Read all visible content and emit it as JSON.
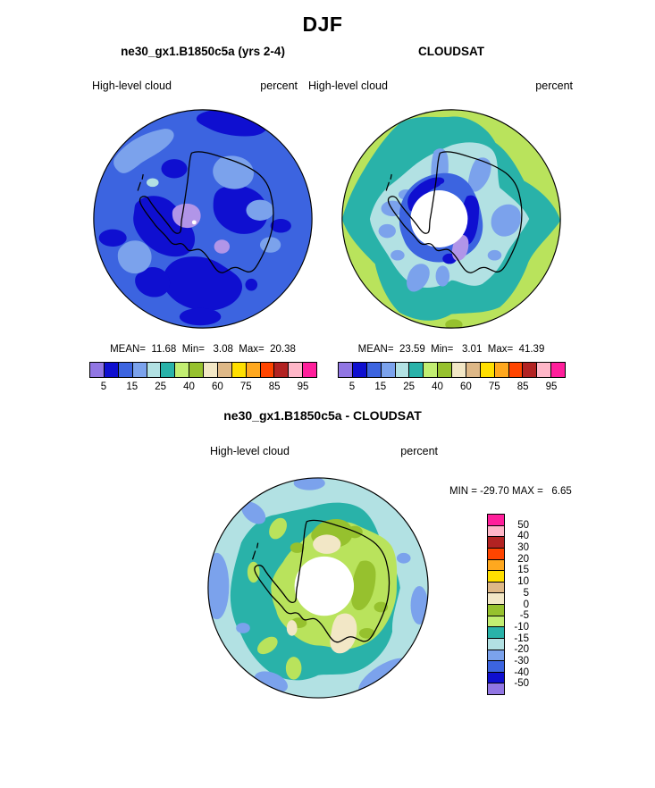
{
  "figure_title": "DJF",
  "palette": {
    "top": [
      "#9176e3",
      "#0f0fd0",
      "#3c64e0",
      "#7ba2ec",
      "#b2e1e3",
      "#29b2a9",
      "#c2ee72",
      "#96c12e",
      "#f2e7c6",
      "#deb887",
      "#ffdf00",
      "#ffa81f",
      "#ff4500",
      "#b22222",
      "#ffb6c8",
      "#ff1f9b"
    ],
    "diff": [
      "#ff1f9b",
      "#ffb6c8",
      "#b22222",
      "#ff4500",
      "#ffa81f",
      "#ffdf00",
      "#deb887",
      "#f2e7c6",
      "#96c12e",
      "#c2ee72",
      "#29b2a9",
      "#b2e1e3",
      "#7ba2ec",
      "#3c64e0",
      "#0f0fd0",
      "#9176e3"
    ]
  },
  "panels": {
    "model": {
      "title": "ne30_gx1.B1850c5a (yrs 2-4)",
      "variable": "High-level cloud",
      "units": "percent",
      "stats": "MEAN=  11.68  Min=   3.08  Max=  20.38",
      "ticks": [
        "5",
        "15",
        "25",
        "40",
        "60",
        "75",
        "85",
        "95"
      ]
    },
    "obs": {
      "title": "CLOUDSAT",
      "variable": "High-level cloud",
      "units": "percent",
      "stats": "MEAN=  23.59  Min=   3.01  Max=  41.39",
      "ticks": [
        "5",
        "15",
        "25",
        "40",
        "60",
        "75",
        "85",
        "95"
      ]
    },
    "diff": {
      "title": "ne30_gx1.B1850c5a - CLOUDSAT",
      "variable": "High-level cloud",
      "units": "percent",
      "stats": "MIN = -29.70 MAX =   6.65",
      "ticks": [
        "50",
        "40",
        "30",
        "20",
        "15",
        "10",
        "5",
        "0",
        "-5",
        "-10",
        "-15",
        "-20",
        "-30",
        "-40",
        "-50"
      ]
    }
  },
  "chart_data": [
    {
      "type": "heatmap",
      "subtype": "filled-contour-polar-map",
      "projection": "south polar stereographic (Antarctica)",
      "season": "DJF",
      "title": "ne30_gx1.B1850c5a (yrs 2-4)",
      "variable": "High-level cloud",
      "units": "percent",
      "stats": {
        "mean": 11.68,
        "min": 3.08,
        "max": 20.38
      },
      "colorbar": {
        "orientation": "horizontal",
        "labeled_ticks": [
          5,
          15,
          25,
          40,
          60,
          75,
          85,
          95
        ],
        "n_colors": 16,
        "colors": [
          "#9176e3",
          "#0f0fd0",
          "#3c64e0",
          "#7ba2ec",
          "#b2e1e3",
          "#29b2a9",
          "#c2ee72",
          "#96c12e",
          "#f2e7c6",
          "#deb887",
          "#ffdf00",
          "#ffa81f",
          "#ff4500",
          "#b22222",
          "#ffb6c8",
          "#ff1f9b"
        ]
      },
      "description": "Mostly royal-blue field (10-15%) with dark-blue patches (5-10%), light-blue patches (15-20%), two lavender spots (<5%) near the pole and black Antarctic coastline"
    },
    {
      "type": "heatmap",
      "subtype": "filled-contour-polar-map",
      "projection": "south polar stereographic (Antarctica)",
      "season": "DJF",
      "title": "CLOUDSAT",
      "variable": "High-level cloud",
      "units": "percent",
      "stats": {
        "mean": 23.59,
        "min": 3.01,
        "max": 41.39
      },
      "colorbar": {
        "orientation": "horizontal",
        "labeled_ticks": [
          5,
          15,
          25,
          40,
          60,
          75,
          85,
          95
        ],
        "n_colors": 16,
        "colors": [
          "#9176e3",
          "#0f0fd0",
          "#3c64e0",
          "#7ba2ec",
          "#b2e1e3",
          "#29b2a9",
          "#c2ee72",
          "#96c12e",
          "#f2e7c6",
          "#deb887",
          "#ffdf00",
          "#ffa81f",
          "#ff4500",
          "#b22222",
          "#ffb6c8",
          "#ff1f9b"
        ]
      },
      "description": "Concentric pattern: yellow-green outer ring, teal ring, pale-cyan ring, cornflower and blue patches toward the pole, small lavender spot, white circular data void at the pole"
    },
    {
      "type": "heatmap",
      "subtype": "filled-contour-polar-map",
      "projection": "south polar stereographic (Antarctica)",
      "season": "DJF",
      "title": "ne30_gx1.B1850c5a - CLOUDSAT",
      "variable": "High-level cloud",
      "units": "percent",
      "stats": {
        "min": -29.7,
        "max": 6.65
      },
      "colorbar": {
        "orientation": "vertical",
        "labeled_ticks": [
          50,
          40,
          30,
          20,
          15,
          10,
          5,
          0,
          -5,
          -10,
          -15,
          -20,
          -30,
          -40,
          -50
        ],
        "n_colors": 16,
        "colors": [
          "#ff1f9b",
          "#ffb6c8",
          "#b22222",
          "#ff4500",
          "#ffa81f",
          "#ffdf00",
          "#deb887",
          "#f2e7c6",
          "#96c12e",
          "#c2ee72",
          "#29b2a9",
          "#b2e1e3",
          "#7ba2ec",
          "#3c64e0",
          "#0f0fd0",
          "#9176e3"
        ]
      },
      "description": "Difference map: pale-cyan base with cornflower rim patches (-20 to -30), teal ring (-10 to -15), yellow-green and olive region (0 to -10) around the pole, beige patches (0 to +5), white data void at the pole"
    }
  ]
}
